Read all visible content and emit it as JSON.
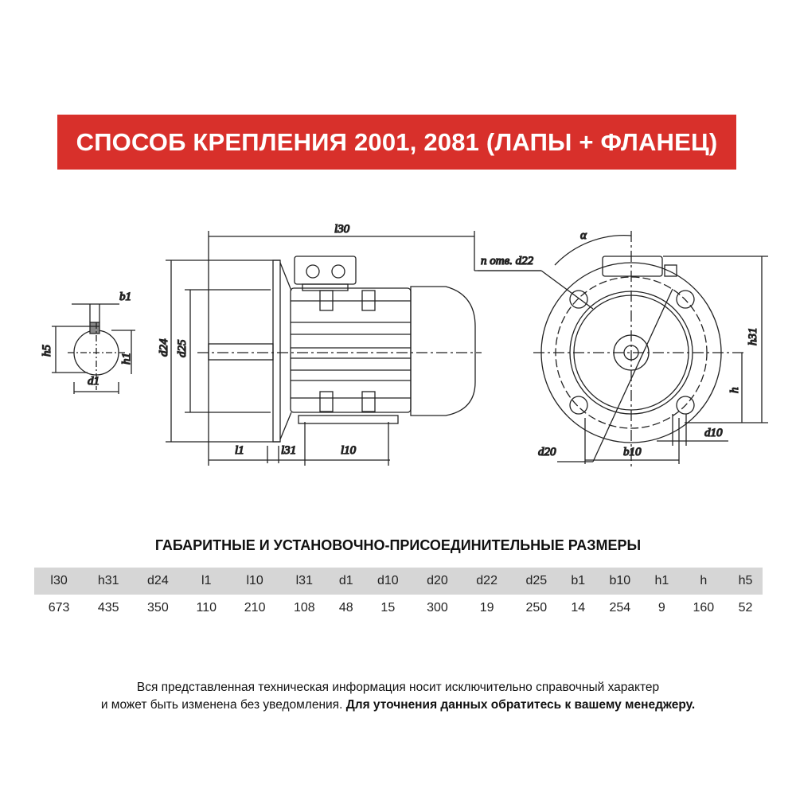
{
  "banner": {
    "title": "СПОСОБ КРЕПЛЕНИЯ 2001, 2081 (ЛАПЫ + ФЛАНЕЦ)",
    "color": "#d8302b"
  },
  "drawing": {
    "labels": {
      "l30": "l30",
      "d24": "d24",
      "d25": "d25",
      "l1": "l1",
      "l31": "l31",
      "l10": "l10",
      "b1": "b1",
      "h5": "h5",
      "h1": "h1",
      "d1": "d1",
      "alpha": "α",
      "n_d22": "n отв. d22",
      "h31": "h31",
      "h": "h",
      "d10": "d10",
      "d20": "d20",
      "b10": "b10"
    }
  },
  "table": {
    "title": "ГАБАРИТНЫЕ И УСТАНОВОЧНО-ПРИСОЕДИНИТЕЛЬНЫЕ РАЗМЕРЫ",
    "headers": [
      "l30",
      "h31",
      "d24",
      "l1",
      "l10",
      "l31",
      "d1",
      "d10",
      "d20",
      "d22",
      "d25",
      "b1",
      "b10",
      "h1",
      "h",
      "h5"
    ],
    "values": [
      "673",
      "435",
      "350",
      "110",
      "210",
      "108",
      "48",
      "15",
      "300",
      "19",
      "250",
      "14",
      "254",
      "9",
      "160",
      "52"
    ]
  },
  "note": {
    "line1": "Вся представленная техническая информация носит исключительно справочный характер",
    "line2_regular": "и может быть изменена без уведомления.",
    "line2_bold": "Для уточнения данных обратитесь к вашему менеджеру."
  }
}
